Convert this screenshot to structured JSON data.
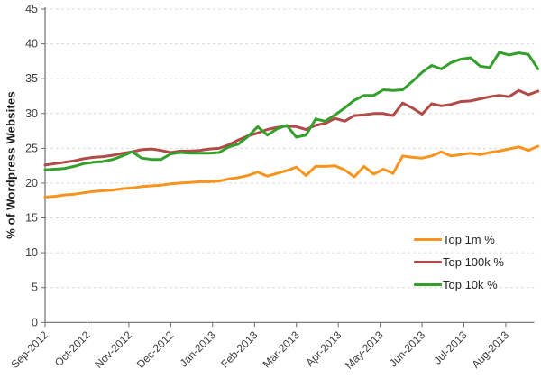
{
  "chart_data": {
    "type": "line",
    "title": "",
    "xlabel": "",
    "ylabel": "% of Wordpress Websites",
    "ylim": [
      0,
      45
    ],
    "y_ticks": [
      0,
      5,
      10,
      15,
      20,
      25,
      30,
      35,
      40,
      45
    ],
    "x_tick_labels": [
      "Sep-2012",
      "Oct-2012",
      "Nov-2012",
      "Dec-2012",
      "Jan-2013",
      "Feb-2013",
      "Mar-2013",
      "Apr-2013",
      "May-2013",
      "Jun-2013",
      "Jul-2013",
      "Aug-2013"
    ],
    "x_unit": "weekly samples, Sep-2012 through Aug-2013",
    "grid": "horizontal dashed light-gray",
    "legend_position": "inside right, lower half, no border",
    "axis_color": "#6e6e6e",
    "grid_color": "#dadada",
    "tick_text_color": "#3d3d3d",
    "series": [
      {
        "name": "Top 1m %",
        "color": "#f7941d",
        "values": [
          18.0,
          18.1,
          18.3,
          18.4,
          18.6,
          18.8,
          18.9,
          19.0,
          19.2,
          19.3,
          19.5,
          19.6,
          19.7,
          19.9,
          20.0,
          20.1,
          20.2,
          20.2,
          20.3,
          20.6,
          20.8,
          21.1,
          21.6,
          21.0,
          21.4,
          21.8,
          22.3,
          21.1,
          22.4,
          22.4,
          22.5,
          21.9,
          20.9,
          22.4,
          21.3,
          22.0,
          21.4,
          23.9,
          23.7,
          23.6,
          23.9,
          24.5,
          23.9,
          24.1,
          24.3,
          24.1,
          24.4,
          24.6,
          24.9,
          25.2,
          24.7,
          25.3
        ]
      },
      {
        "name": "Top 100k %",
        "color": "#b04b48",
        "values": [
          22.6,
          22.8,
          23.0,
          23.2,
          23.5,
          23.7,
          23.8,
          24.0,
          24.3,
          24.5,
          24.8,
          24.9,
          24.7,
          24.4,
          24.6,
          24.6,
          24.7,
          24.9,
          25.0,
          25.5,
          26.2,
          26.8,
          27.2,
          27.7,
          28.0,
          28.2,
          28.1,
          27.7,
          28.3,
          28.6,
          29.3,
          28.9,
          29.7,
          29.8,
          30.0,
          30.0,
          29.7,
          31.5,
          30.8,
          29.9,
          31.4,
          31.1,
          31.3,
          31.7,
          31.8,
          32.1,
          32.4,
          32.6,
          32.4,
          33.3,
          32.7,
          33.2
        ]
      },
      {
        "name": "Top 10k %",
        "color": "#33a02c",
        "values": [
          21.9,
          22.0,
          22.1,
          22.4,
          22.8,
          23.0,
          23.1,
          23.4,
          23.9,
          24.5,
          23.6,
          23.4,
          23.4,
          24.2,
          24.4,
          24.3,
          24.3,
          24.3,
          24.4,
          25.2,
          25.6,
          26.7,
          28.1,
          26.9,
          27.8,
          28.3,
          26.6,
          26.9,
          29.2,
          28.9,
          29.8,
          30.8,
          31.9,
          32.6,
          32.6,
          33.4,
          33.3,
          33.4,
          34.6,
          35.9,
          36.9,
          36.4,
          37.3,
          37.8,
          38.0,
          36.8,
          36.6,
          38.8,
          38.4,
          38.7,
          38.5,
          36.4
        ]
      }
    ]
  }
}
